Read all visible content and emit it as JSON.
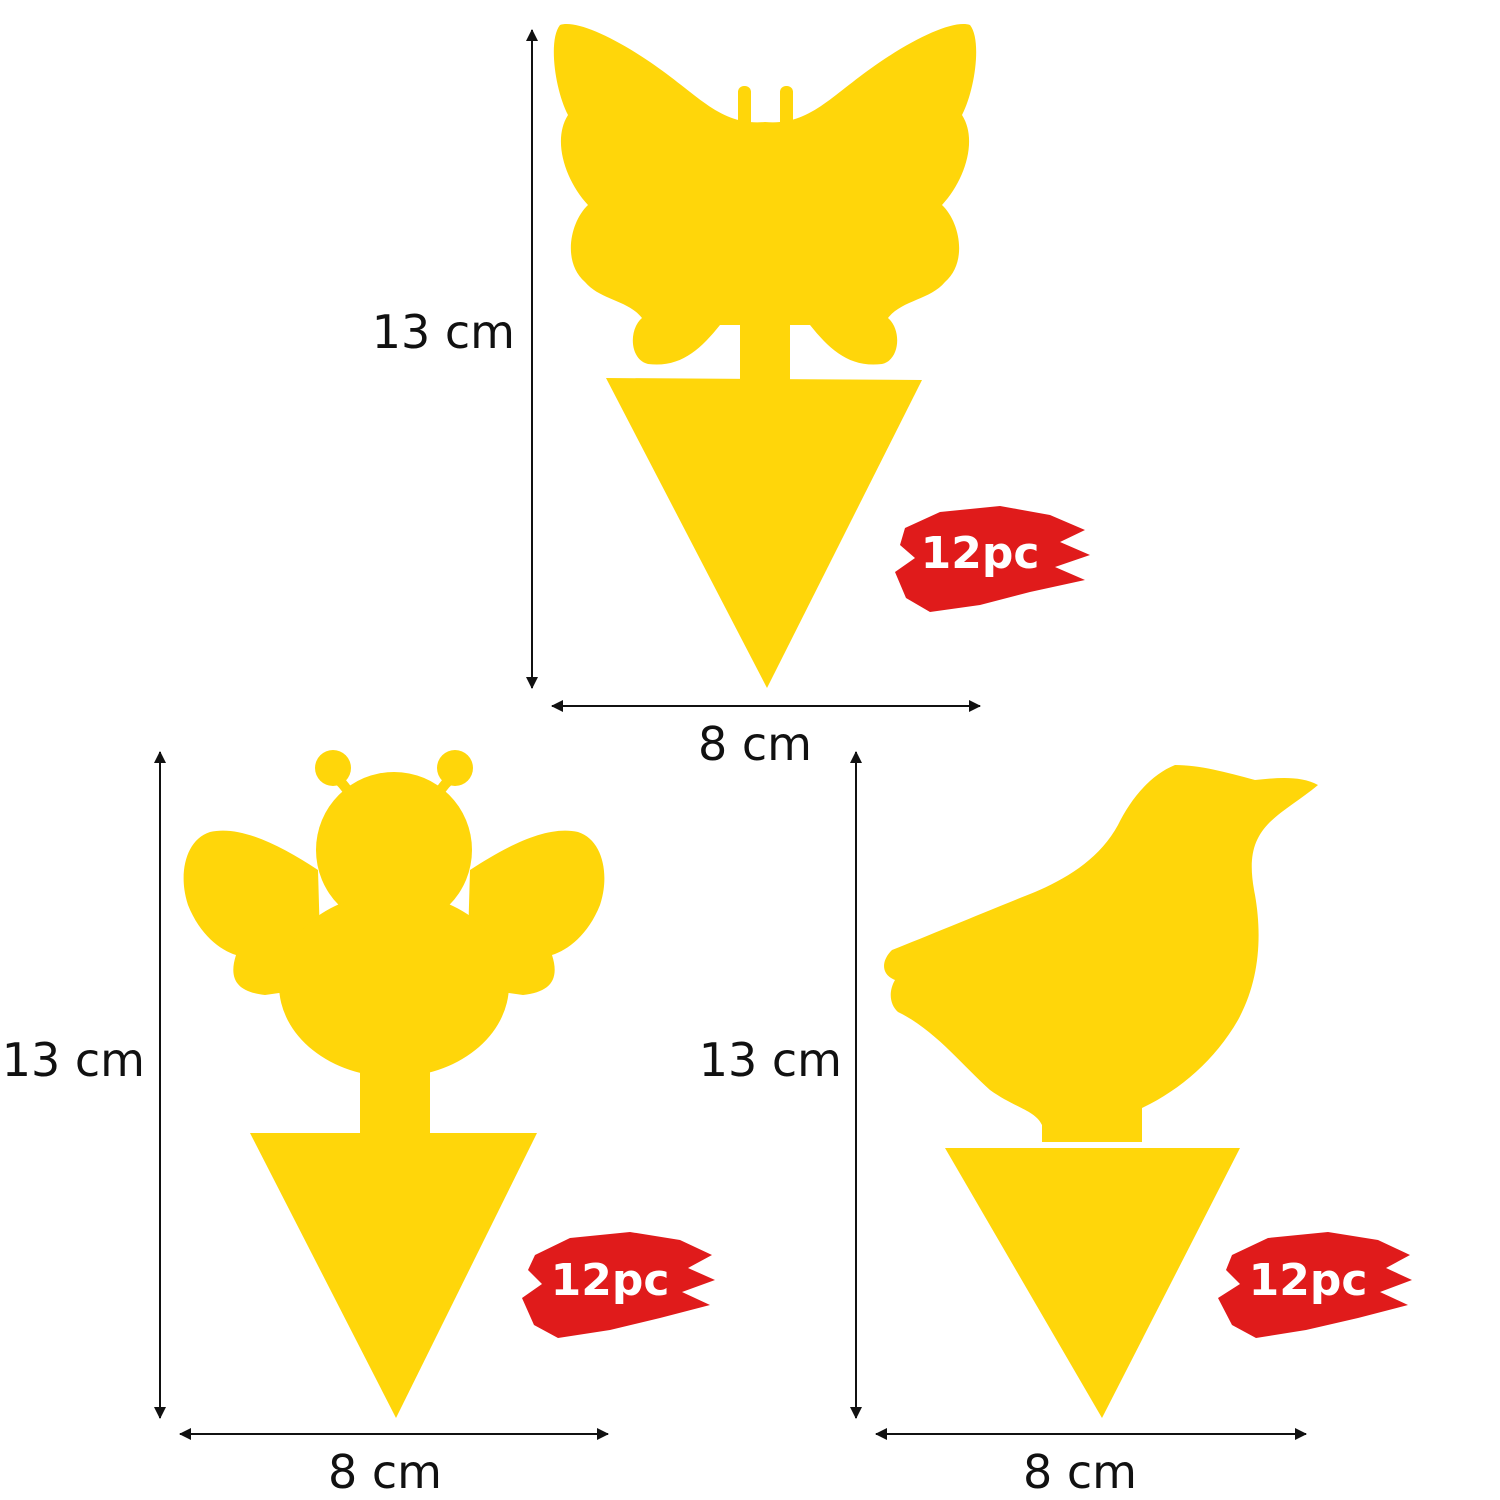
{
  "colors": {
    "trap_yellow": "#FFD60A",
    "badge_red": "#E01B1B",
    "badge_text": "#FFFFFF",
    "arrow": "#111111",
    "background": "#FFFFFF"
  },
  "traps": [
    {
      "shape": "butterfly",
      "height_label": "13 cm",
      "width_label": "8 cm",
      "quantity_badge": "12pc"
    },
    {
      "shape": "bee",
      "height_label": "13 cm",
      "width_label": "8 cm",
      "quantity_badge": "12pc"
    },
    {
      "shape": "bird",
      "height_label": "13 cm",
      "width_label": "8 cm",
      "quantity_badge": "12pc"
    }
  ]
}
